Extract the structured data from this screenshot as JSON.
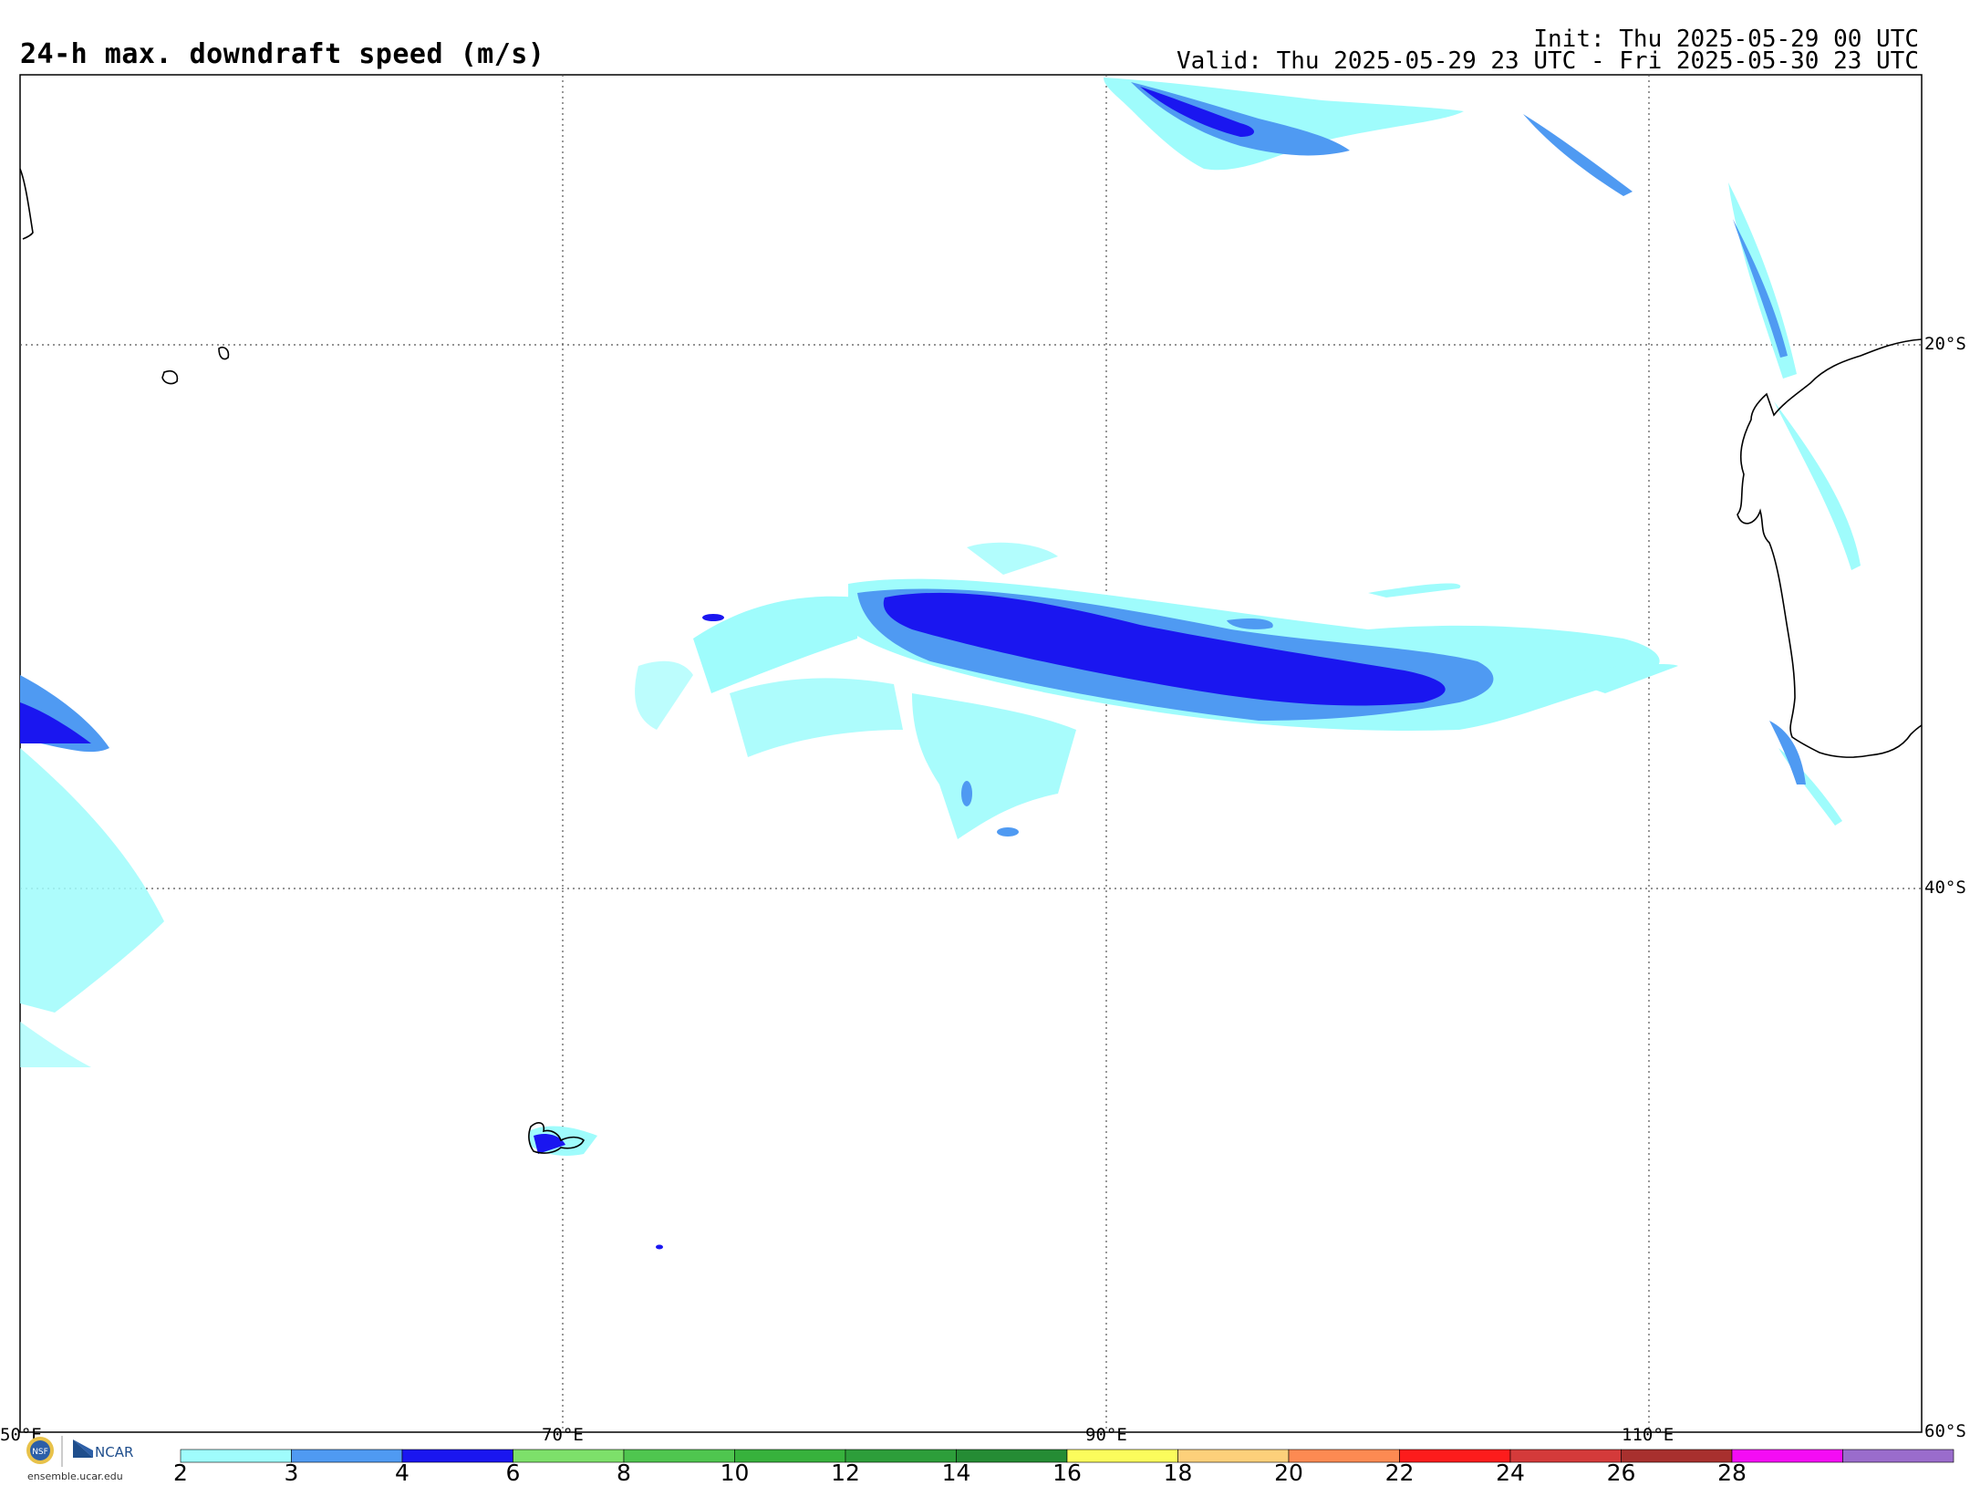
{
  "header": {
    "title": "24-h max. downdraft speed (m/s)",
    "init": "Init: Thu 2025-05-29 00 UTC",
    "valid": "Valid: Thu 2025-05-29 23 UTC - Fri 2025-05-30 23 UTC"
  },
  "map": {
    "lon_labels": [
      "50°E",
      "70°E",
      "90°E",
      "110°E"
    ],
    "lat_labels": [
      "20°S",
      "40°S",
      "60°S"
    ]
  },
  "colorbar": {
    "ticks": [
      "2",
      "3",
      "4",
      "6",
      "8",
      "10",
      "12",
      "14",
      "16",
      "18",
      "20",
      "22",
      "24",
      "26",
      "28"
    ],
    "colors": [
      "#9ffcfc",
      "#4f9af2",
      "#1a16f0",
      "#7de06a",
      "#4fc64f",
      "#37b23c",
      "#2d9e3a",
      "#258c34",
      "#fbfc5c",
      "#fdd07a",
      "#fd8a52",
      "#fd1c1c",
      "#d43a3a",
      "#a8302e",
      "#f40cf4",
      "#9a6ccc"
    ]
  },
  "footer": {
    "logo_text": "NCAR",
    "site": "ensemble.ucar.edu"
  },
  "colors": {
    "light_cyan": "#9ffcfc",
    "medium_blue": "#4f9af2",
    "dark_blue": "#1a16f0"
  },
  "icons": [
    "nsf-logo-icon",
    "ncar-logo-icon"
  ]
}
